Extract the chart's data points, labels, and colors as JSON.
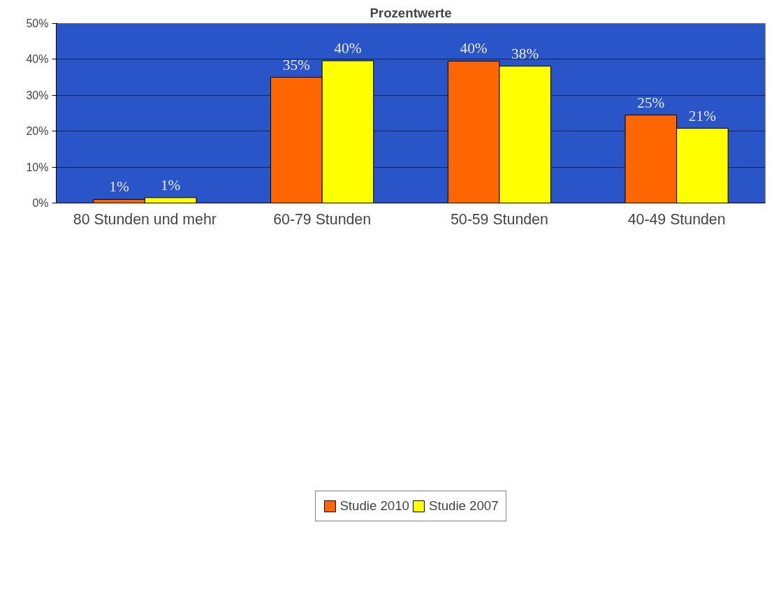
{
  "chart_data": {
    "type": "bar",
    "title": "Prozentwerte",
    "categories": [
      "80 Stunden und mehr",
      "60-79 Stunden",
      "50-59 Stunden",
      "40-49 Stunden"
    ],
    "series": [
      {
        "name": "Studie 2010",
        "color": "#ff6600",
        "values": [
          1.0,
          35.0,
          39.5,
          24.5
        ],
        "value_labels": [
          "1%",
          "35%",
          "40%",
          "25%"
        ]
      },
      {
        "name": "Studie 2007",
        "color": "#ffff00",
        "values": [
          1.5,
          39.6,
          38.1,
          20.8
        ],
        "value_labels": [
          "1%",
          "40%",
          "38%",
          "21%"
        ]
      }
    ],
    "ylim": [
      0,
      50
    ],
    "yticks": [
      {
        "value": 0,
        "label": "0%"
      },
      {
        "value": 10,
        "label": "10%"
      },
      {
        "value": 20,
        "label": "20%"
      },
      {
        "value": 30,
        "label": "30%"
      },
      {
        "value": 40,
        "label": "40%"
      },
      {
        "value": 50,
        "label": "50%"
      }
    ],
    "grid": "y",
    "legend": "bottom"
  }
}
